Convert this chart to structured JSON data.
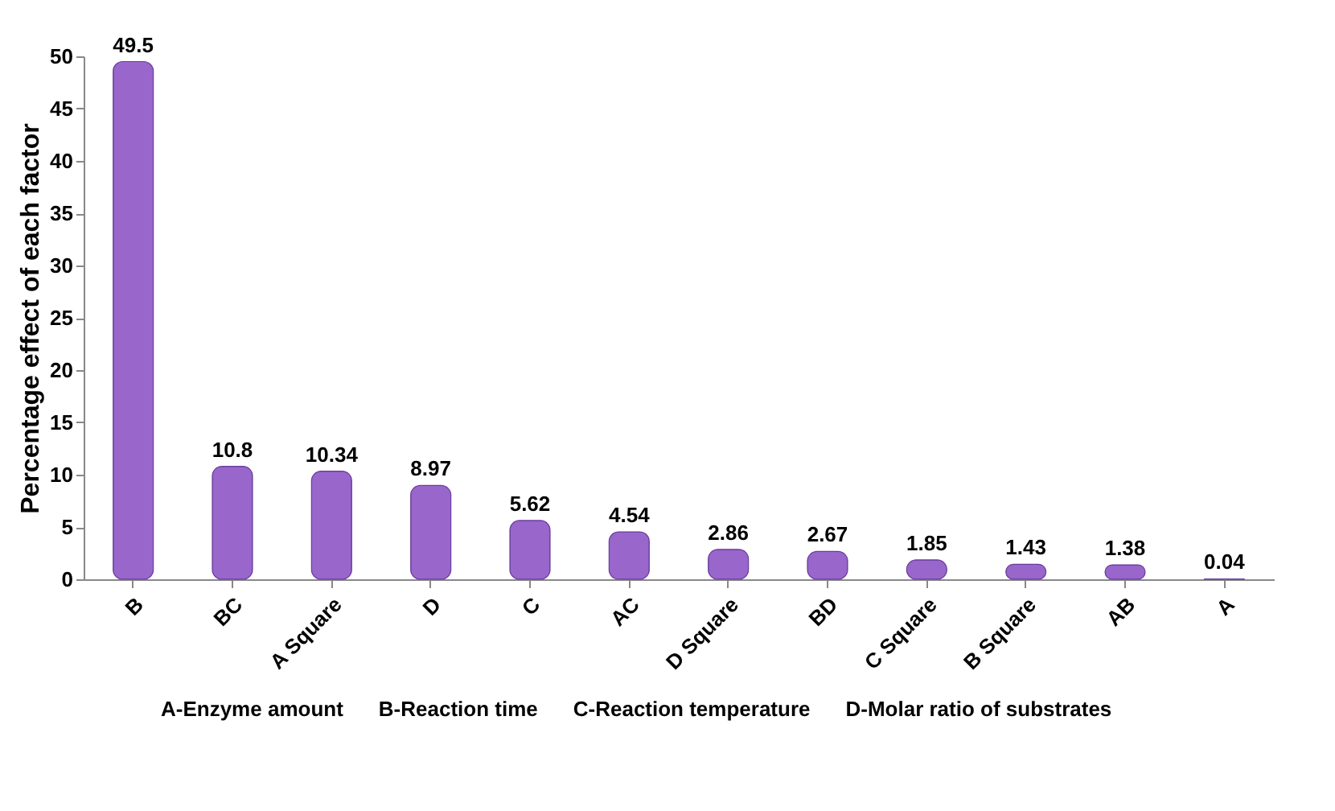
{
  "chart_data": {
    "type": "bar",
    "ylabel": "Percentage effect of each factor",
    "categories": [
      "B",
      "BC",
      "A Square",
      "D",
      "C",
      "AC",
      "D Square",
      "BD",
      "C Square",
      "B Square",
      "AB",
      "A"
    ],
    "values": [
      49.5,
      10.8,
      10.34,
      8.97,
      5.62,
      4.54,
      2.86,
      2.67,
      1.85,
      1.43,
      1.38,
      0.04
    ],
    "color": "#9966cc",
    "ylim": [
      0,
      50
    ],
    "yticks": [
      0,
      5,
      10,
      15,
      20,
      25,
      30,
      35,
      40,
      45,
      50
    ],
    "grid": false,
    "data_labels": true,
    "annotations": [
      "A-Enzyme amount",
      "B-Reaction time",
      "C-Reaction temperature",
      "D-Molar ratio of substrates"
    ]
  }
}
